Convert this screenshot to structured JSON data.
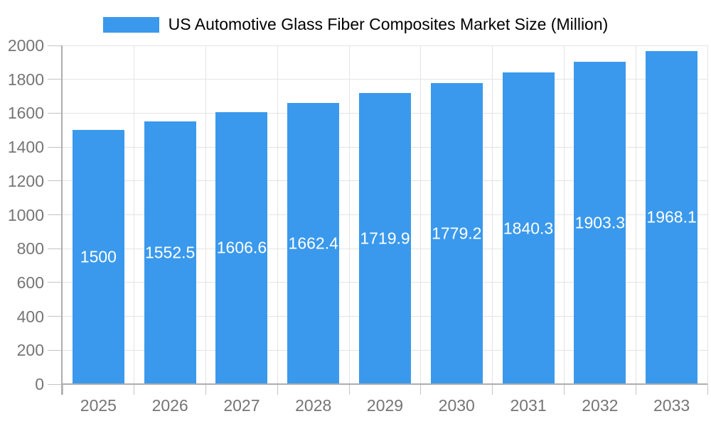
{
  "chart_data": {
    "type": "bar",
    "title": "US Automotive Glass Fiber Composites Market Size (Million)",
    "categories": [
      "2025",
      "2026",
      "2027",
      "2028",
      "2029",
      "2030",
      "2031",
      "2032",
      "2033"
    ],
    "values": [
      1500,
      1552.5,
      1606.6,
      1662.4,
      1719.9,
      1779.2,
      1840.3,
      1903.3,
      1968.1
    ],
    "value_labels": [
      "1500",
      "1552.5",
      "1606.6",
      "1662.4",
      "1719.9",
      "1779.2",
      "1840.3",
      "1903.3",
      "1968.1"
    ],
    "xlabel": "",
    "ylabel": "",
    "ylim": [
      0,
      2000
    ],
    "ytick_step": 200,
    "ytick_labels": [
      "0",
      "200",
      "400",
      "600",
      "800",
      "1000",
      "1200",
      "1400",
      "1600",
      "1800",
      "2000"
    ],
    "grid": true,
    "legend_position": "top-center",
    "bar_color": "#3a99ec",
    "value_label_color": "#ffffff",
    "axis_text_color": "#757575",
    "grid_color": "#e4e4e4",
    "tick_color": "#c4c4c4",
    "axis_line_color": "#adadad"
  }
}
